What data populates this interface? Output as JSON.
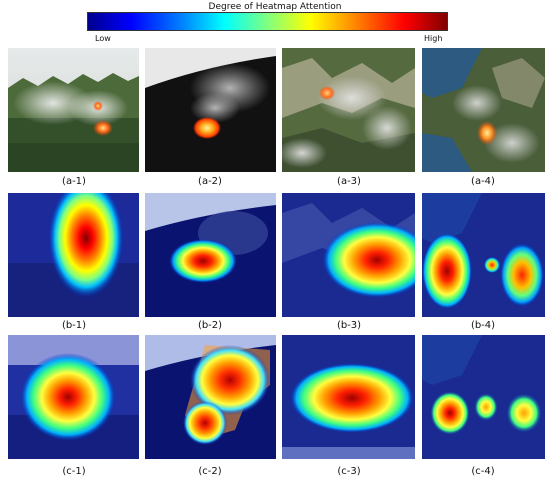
{
  "colorbar": {
    "title": "Degree of Heatmap Attention",
    "low_label": "Low",
    "high_label": "High"
  },
  "rows": [
    {
      "kind": "original",
      "captions": [
        "(a-1)",
        "(a-2)",
        "(a-3)",
        "(a-4)"
      ]
    },
    {
      "kind": "heatmap",
      "captions": [
        "(b-1)",
        "(b-2)",
        "(b-3)",
        "(b-4)"
      ]
    },
    {
      "kind": "heatmap",
      "captions": [
        "(c-1)",
        "(c-2)",
        "(c-3)",
        "(c-4)"
      ]
    }
  ],
  "colormap": [
    "#00008f",
    "#0000ff",
    "#0080ff",
    "#00ffff",
    "#80ff80",
    "#ffff00",
    "#ff8000",
    "#ff0000",
    "#800000"
  ]
}
